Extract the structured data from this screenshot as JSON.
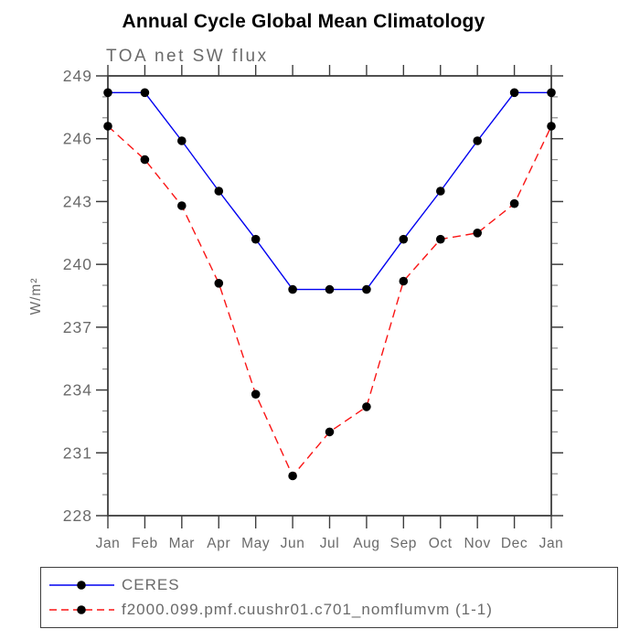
{
  "chart_data": {
    "type": "line",
    "title": "Annual Cycle Global Mean Climatology",
    "subtitle": "TOA net SW flux",
    "ylabel": "W/m²",
    "xlabel": "",
    "categories": [
      "Jan",
      "Feb",
      "Mar",
      "Apr",
      "May",
      "Jun",
      "Jul",
      "Aug",
      "Sep",
      "Oct",
      "Nov",
      "Dec",
      "Jan"
    ],
    "ylim": [
      228,
      249
    ],
    "ytick_major": 3,
    "ytick_minor": 1,
    "grid": false,
    "legend_position": "bottom",
    "series": [
      {
        "name": "CERES",
        "color": "#0000f0",
        "style": "solid",
        "marker": "black-dot",
        "values": [
          248.2,
          248.2,
          245.9,
          243.5,
          241.2,
          238.8,
          238.8,
          238.8,
          241.2,
          243.5,
          245.9,
          248.2,
          248.2
        ]
      },
      {
        "name": "f2000.099.pmf.cuushr01.c701_nomflumvm (1-1)",
        "color": "#fa1414",
        "style": "dashed",
        "marker": "black-dot",
        "values": [
          246.6,
          245.0,
          242.8,
          239.1,
          233.8,
          229.9,
          232.0,
          233.2,
          239.2,
          241.2,
          241.5,
          242.9,
          246.6
        ]
      }
    ]
  },
  "colors": {
    "axis": "#3d3d3d",
    "minor_tick": "#8a8a8a",
    "text_gray": "#6a6a6a",
    "title_text": "#000000",
    "marker": "#000000",
    "background": "#ffffff"
  }
}
